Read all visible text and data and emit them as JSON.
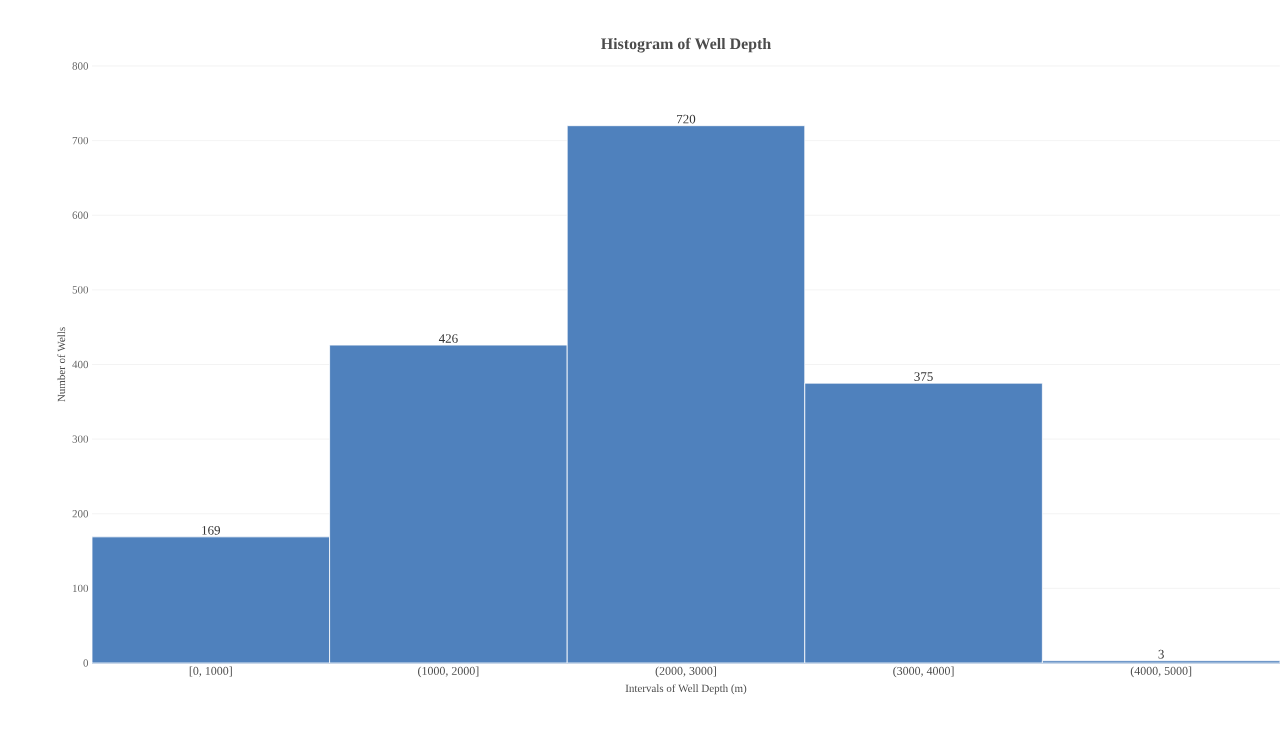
{
  "chart_data": {
    "type": "bar",
    "title": "Histogram of Well Depth",
    "xlabel": "Intervals of Well Depth (m)",
    "ylabel": "Number of Wells",
    "categories": [
      "[0, 1000]",
      "(1000, 2000]",
      "(2000, 3000]",
      "(3000, 4000]",
      "(4000, 5000]"
    ],
    "values": [
      169,
      426,
      720,
      375,
      3
    ],
    "color": "#4f81bd",
    "ylim": [
      0,
      800
    ],
    "yticks": [
      0,
      100,
      200,
      300,
      400,
      500,
      600,
      700,
      800
    ],
    "grid": "y",
    "data_labels": true
  }
}
